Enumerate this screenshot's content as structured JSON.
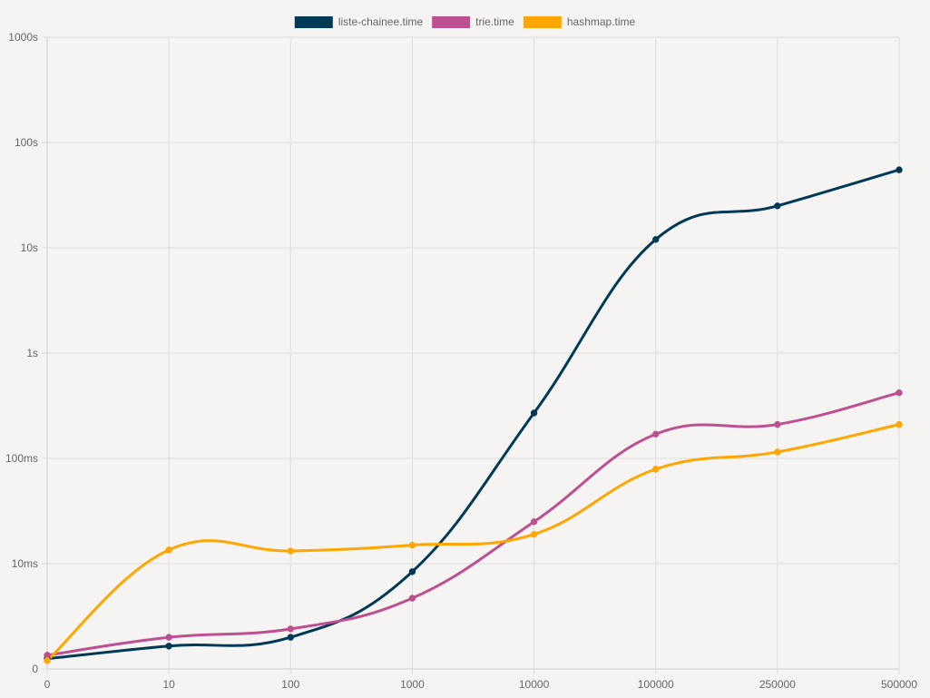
{
  "chart_data": {
    "type": "line",
    "categories": [
      "0",
      "10",
      "100",
      "1000",
      "10000",
      "100000",
      "250000",
      "500000"
    ],
    "y_scale": "log",
    "y_unit": "seconds",
    "y_ticks": [
      {
        "value": 0.001,
        "label": "0"
      },
      {
        "value": 0.01,
        "label": "10ms"
      },
      {
        "value": 0.1,
        "label": "100ms"
      },
      {
        "value": 1,
        "label": "1s"
      },
      {
        "value": 10,
        "label": "10s"
      },
      {
        "value": 100,
        "label": "100s"
      },
      {
        "value": 1000,
        "label": "1000s"
      }
    ],
    "ylim": [
      0.001,
      1000
    ],
    "grid": true,
    "legend_position": "top-center",
    "series": [
      {
        "name": "liste-chainee.time",
        "color": "#003a57",
        "values": [
          0.00125,
          0.00165,
          0.002,
          0.0084,
          0.27,
          12,
          25,
          55
        ]
      },
      {
        "name": "trie.time",
        "color": "#bc5090",
        "values": [
          0.00135,
          0.002,
          0.0024,
          0.0047,
          0.025,
          0.17,
          0.21,
          0.42
        ]
      },
      {
        "name": "hashmap.time",
        "color": "#ffa600",
        "values": [
          0.0012,
          0.0135,
          0.0132,
          0.015,
          0.019,
          0.079,
          0.115,
          0.21
        ]
      }
    ]
  }
}
